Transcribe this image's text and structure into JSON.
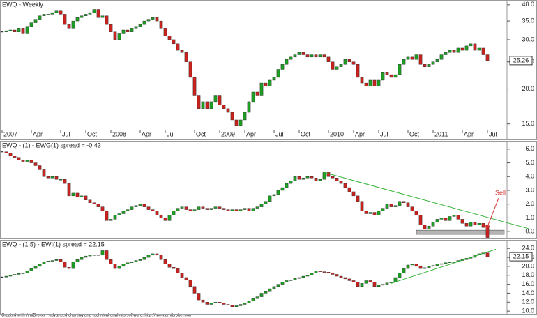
{
  "chart_data": [
    {
      "type": "candlestick",
      "title": "EWQ - Weekly",
      "log_scale": true,
      "color_up": "#1f9e24",
      "color_down": "#c8231f",
      "last_value_box": true,
      "xlim": [
        0,
        117
      ],
      "ylim": [
        14.3,
        41.6
      ],
      "yticks": [
        {
          "value": 15,
          "label": "15.0"
        },
        {
          "value": 20,
          "label": "20.0"
        },
        {
          "value": 25,
          "label": "25.0"
        },
        {
          "value": 30,
          "label": "30.0"
        },
        {
          "value": 35,
          "label": "35.0"
        },
        {
          "value": 40,
          "label": "40.0"
        }
      ],
      "xticks": [
        {
          "value": 0,
          "label": "2007"
        },
        {
          "value": 7,
          "label": "Apr"
        },
        {
          "value": 14,
          "label": "Jul"
        },
        {
          "value": 20,
          "label": "Oct"
        },
        {
          "value": 26,
          "label": "2008"
        },
        {
          "value": 33,
          "label": "Apr"
        },
        {
          "value": 39,
          "label": "Jul"
        },
        {
          "value": 46,
          "label": "Oct"
        },
        {
          "value": 52,
          "label": "2009"
        },
        {
          "value": 58,
          "label": "Apr"
        },
        {
          "value": 65,
          "label": "Jul"
        },
        {
          "value": 71,
          "label": "Oct"
        },
        {
          "value": 78,
          "label": "2010"
        },
        {
          "value": 84,
          "label": "Apr"
        },
        {
          "value": 90,
          "label": "Jul"
        },
        {
          "value": 97,
          "label": "Oct"
        },
        {
          "value": 103,
          "label": "2011"
        },
        {
          "value": 110,
          "label": "Apr"
        },
        {
          "value": 116,
          "label": "Jul"
        }
      ],
      "values": [
        32,
        32.3,
        32.5,
        32,
        33,
        31.5,
        33.5,
        34.5,
        35.5,
        36.5,
        37,
        37,
        37.5,
        38,
        37,
        34,
        33,
        35,
        36,
        36.5,
        37,
        37.5,
        38.5,
        36,
        36.5,
        34,
        32,
        30,
        31.5,
        32.5,
        32,
        33,
        33.5,
        34,
        35,
        35.5,
        36,
        35,
        33,
        31,
        30,
        29,
        27.5,
        27,
        25,
        22,
        19,
        17,
        18,
        17,
        18,
        19,
        17.5,
        17,
        16.5,
        15.5,
        14.8,
        15.5,
        16.5,
        18,
        19.5,
        19,
        21,
        20.5,
        21.5,
        22,
        23.5,
        24.5,
        25.5,
        26,
        26.5,
        27,
        26.5,
        26,
        26.5,
        26,
        26.5,
        26,
        25,
        23.5,
        24,
        24.5,
        25.5,
        25,
        24.5,
        22,
        21,
        20.5,
        21.5,
        20.5,
        21.5,
        23,
        22.5,
        22,
        22.5,
        24.5,
        25.5,
        26,
        25.5,
        26.5,
        24.5,
        24,
        24.5,
        25,
        25.5,
        26.5,
        27,
        27.5,
        27,
        28,
        27.5,
        28.5,
        29,
        27.5,
        28,
        26.5,
        25.26
      ]
    },
    {
      "type": "candlestick",
      "title": "EWQ - (1) - EWG(1) spread = -0.43",
      "log_scale": false,
      "color_up": "#1f9e24",
      "color_down": "#c8231f",
      "last_value_box": false,
      "xlim": [
        0,
        117
      ],
      "ylim": [
        -0.45,
        6.6
      ],
      "yticks": [
        {
          "value": 0,
          "label": "0.0"
        },
        {
          "value": 1,
          "label": "1.0"
        },
        {
          "value": 2,
          "label": "2.0"
        },
        {
          "value": 3,
          "label": "3.0"
        },
        {
          "value": 4,
          "label": "4.0"
        },
        {
          "value": 5,
          "label": "5.0"
        },
        {
          "value": 6,
          "label": "6.0"
        }
      ],
      "values": [
        5.8,
        5.7,
        5.5,
        5.4,
        5.2,
        5.1,
        5.2,
        5.0,
        4.8,
        4.5,
        4.0,
        3.9,
        4.0,
        3.8,
        3.8,
        3.5,
        2.6,
        2.8,
        2.5,
        2.6,
        2.3,
        2.1,
        2.0,
        1.8,
        1.5,
        0.8,
        0.9,
        1.2,
        1.3,
        1.5,
        1.6,
        1.8,
        1.9,
        2.0,
        1.8,
        1.6,
        1.5,
        1.2,
        1.0,
        0.8,
        1.2,
        1.5,
        1.7,
        1.8,
        1.6,
        1.5,
        1.6,
        1.8,
        1.7,
        1.6,
        1.7,
        1.8,
        1.7,
        1.6,
        1.5,
        1.6,
        1.5,
        1.6,
        1.7,
        1.5,
        1.7,
        1.8,
        2.0,
        2.2,
        2.6,
        2.7,
        3.0,
        3.2,
        3.5,
        3.7,
        4.0,
        3.8,
        3.9,
        4.0,
        3.9,
        3.7,
        3.8,
        4.3,
        4.0,
        3.9,
        3.7,
        3.5,
        3.2,
        2.9,
        2.6,
        2.2,
        1.5,
        1.3,
        1.4,
        1.2,
        1.5,
        1.7,
        2.0,
        1.8,
        1.9,
        2.2,
        2.1,
        1.8,
        1.5,
        1.2,
        0.5,
        0.2,
        0.4,
        0.7,
        0.9,
        1.0,
        0.8,
        1.1,
        1.2,
        0.9,
        0.6,
        0.4,
        0.7,
        0.5,
        0.6,
        0.3,
        -0.43
      ],
      "trendlines": [
        {
          "color": "#33b233",
          "x": [
            77,
            126
          ],
          "y": [
            4.3,
            0.2
          ]
        }
      ],
      "band": {
        "color": "#b4b4b4",
        "x": [
          99,
          120
        ],
        "y": [
          -0.2,
          0.1
        ]
      },
      "annotation": {
        "text": "Sell",
        "color": "#d0302a"
      }
    },
    {
      "type": "candlestick",
      "title": "EWQ - (1.5) - EWI(1) spread = 22.15",
      "log_scale": false,
      "color_up": "#1f9e24",
      "color_down": "#c8231f",
      "last_value_box": true,
      "xlim": [
        0,
        117
      ],
      "ylim": [
        9.4,
        25.9
      ],
      "yticks": [
        {
          "value": 10,
          "label": "10.0"
        },
        {
          "value": 12,
          "label": "12.0"
        },
        {
          "value": 14,
          "label": "14.0"
        },
        {
          "value": 16,
          "label": "16.0"
        },
        {
          "value": 18,
          "label": "18.0"
        },
        {
          "value": 20,
          "label": "20.0"
        },
        {
          "value": 22,
          "label": "22.0"
        },
        {
          "value": 24,
          "label": "24.0"
        }
      ],
      "values": [
        17.6,
        17.8,
        18,
        18.2,
        18.4,
        18.5,
        19,
        19.5,
        20,
        20.5,
        21,
        21.2,
        21.3,
        21.5,
        21,
        19.8,
        19.5,
        21,
        21.5,
        22,
        22.3,
        22.5,
        22.6,
        22.5,
        23.5,
        21.5,
        20.5,
        19.5,
        20,
        20.5,
        20.8,
        21,
        21.3,
        21.5,
        22,
        22.5,
        22.8,
        22.5,
        21.5,
        20.5,
        19.8,
        19.5,
        18.5,
        17.5,
        17,
        15.5,
        14,
        12.5,
        12,
        11.5,
        11.8,
        12,
        11.8,
        11.5,
        11.3,
        11,
        11.2,
        11.5,
        11.8,
        12.3,
        12.8,
        13.2,
        14,
        14.5,
        15,
        15.5,
        16,
        16.5,
        16.8,
        17,
        17.3,
        17.5,
        17.8,
        18,
        18.5,
        19,
        18.8,
        18.7,
        18.5,
        18.2,
        17.8,
        17.5,
        17.2,
        16.8,
        16.5,
        15.5,
        16.2,
        16.8,
        16.5,
        15.5,
        15.8,
        16,
        16.3,
        16.5,
        17.5,
        18.5,
        19.5,
        20.3,
        20.5,
        20,
        19.5,
        19.7,
        20,
        20.2,
        20.5,
        20.6,
        20.8,
        21,
        21,
        21.3,
        21.5,
        21.8,
        22,
        22.5,
        22.8,
        23,
        22.15
      ],
      "trendlines": [
        {
          "color": "#33b233",
          "x": [
            93,
            118
          ],
          "y": [
            16.2,
            23.8
          ]
        }
      ]
    }
  ],
  "footer": "Created with AmiBroker - advanced charting and technical analysis software. http://www.amibroker.com"
}
